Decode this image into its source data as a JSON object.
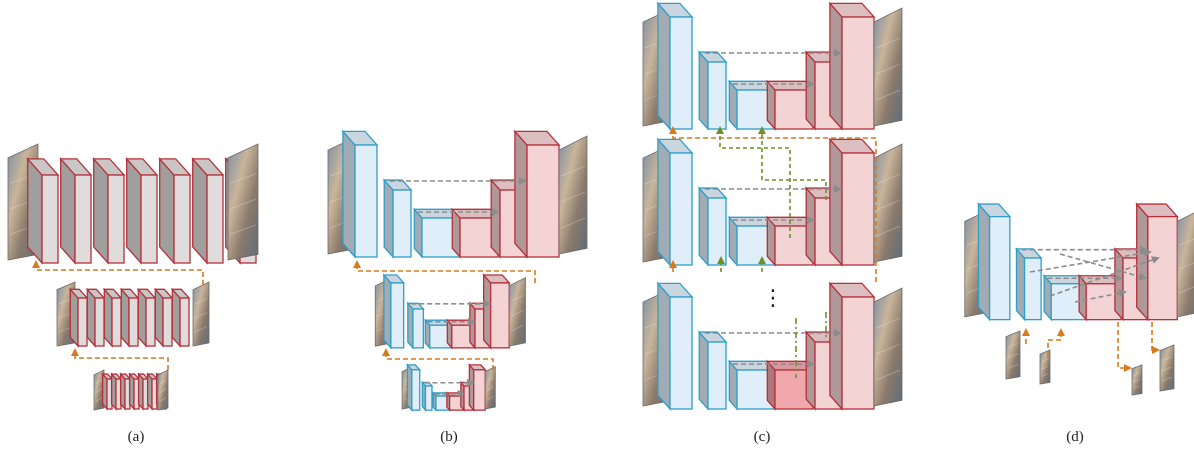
{
  "captions": [
    "(a)",
    "(b)",
    "(c)",
    "(d)"
  ],
  "ellipsis": "⋮",
  "colors": {
    "encoder_stroke": "#2e9ec9",
    "encoder_fill": "#dfeef8",
    "decoder_stroke": "#b5303a",
    "decoder_fill": "#f4d3d5",
    "plain_fill": "#e0dcdc",
    "skip_arrow": "#8c8c8c",
    "scale_arrow": "#d97a1c",
    "cross_arrow": "#6f8f2a"
  },
  "panels": [
    {
      "id": "a",
      "kind": "multi-scale plain cascade"
    },
    {
      "id": "b",
      "kind": "multi-scale encoder-decoder"
    },
    {
      "id": "c",
      "kind": "stacked encoder-decoders"
    },
    {
      "id": "d",
      "kind": "single encoder-decoder with multi-scale fusion"
    }
  ]
}
